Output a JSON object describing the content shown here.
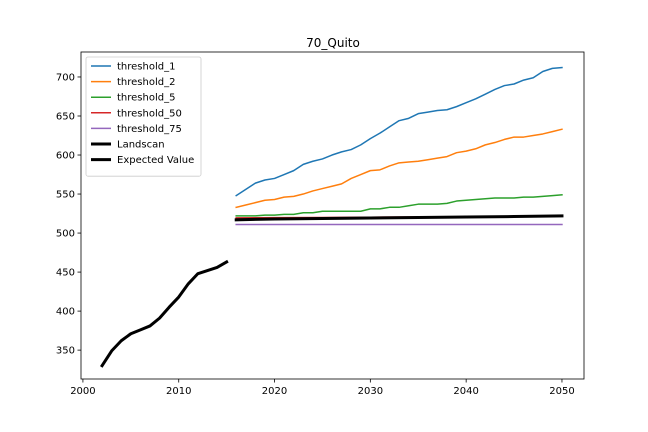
{
  "chart_data": {
    "type": "line",
    "title": "70_Quito",
    "xlabel": "",
    "ylabel": "",
    "xlim": [
      1999.8,
      2052.3
    ],
    "ylim": [
      313,
      732
    ],
    "x_ticks": [
      2000,
      2010,
      2020,
      2030,
      2040,
      2050
    ],
    "y_ticks": [
      350,
      400,
      450,
      500,
      550,
      600,
      650,
      700
    ],
    "legend_position": "top-left",
    "grid": false,
    "series": [
      {
        "name": "threshold_1",
        "color": "#1f77b4",
        "width": 1.5,
        "x": [
          2016,
          2017,
          2018,
          2019,
          2020,
          2021,
          2022,
          2023,
          2024,
          2025,
          2026,
          2027,
          2028,
          2029,
          2030,
          2031,
          2032,
          2033,
          2034,
          2035,
          2036,
          2037,
          2038,
          2039,
          2040,
          2041,
          2042,
          2043,
          2044,
          2045,
          2046,
          2047,
          2048,
          2049,
          2050
        ],
        "y": [
          548,
          556,
          564,
          568,
          570,
          575,
          580,
          588,
          592,
          595,
          600,
          604,
          607,
          613,
          621,
          628,
          636,
          644,
          647,
          653,
          655,
          657,
          658,
          662,
          667,
          672,
          678,
          684,
          689,
          691,
          696,
          699,
          707,
          711,
          712
        ]
      },
      {
        "name": "threshold_2",
        "color": "#ff7f0e",
        "width": 1.5,
        "x": [
          2016,
          2017,
          2018,
          2019,
          2020,
          2021,
          2022,
          2023,
          2024,
          2025,
          2026,
          2027,
          2028,
          2029,
          2030,
          2031,
          2032,
          2033,
          2034,
          2035,
          2036,
          2037,
          2038,
          2039,
          2040,
          2041,
          2042,
          2043,
          2044,
          2045,
          2046,
          2047,
          2048,
          2049,
          2050
        ],
        "y": [
          533,
          536,
          539,
          542,
          543,
          546,
          547,
          550,
          554,
          557,
          560,
          563,
          570,
          575,
          580,
          581,
          586,
          590,
          591,
          592,
          594,
          596,
          598,
          603,
          605,
          608,
          613,
          616,
          620,
          623,
          623,
          625,
          627,
          630,
          633
        ]
      },
      {
        "name": "threshold_5",
        "color": "#2ca02c",
        "width": 1.5,
        "x": [
          2016,
          2017,
          2018,
          2019,
          2020,
          2021,
          2022,
          2023,
          2024,
          2025,
          2026,
          2027,
          2028,
          2029,
          2030,
          2031,
          2032,
          2033,
          2034,
          2035,
          2036,
          2037,
          2038,
          2039,
          2040,
          2041,
          2042,
          2043,
          2044,
          2045,
          2046,
          2047,
          2048,
          2049,
          2050
        ],
        "y": [
          522,
          522,
          522,
          523,
          523,
          524,
          524,
          526,
          526,
          528,
          528,
          528,
          528,
          528,
          531,
          531,
          533,
          533,
          535,
          537,
          537,
          537,
          538,
          541,
          542,
          543,
          544,
          545,
          545,
          545,
          546,
          546,
          547,
          548,
          549
        ]
      },
      {
        "name": "threshold_50",
        "color": "#d62728",
        "width": 1.5,
        "x": [
          2016,
          2020,
          2025,
          2030,
          2035,
          2040,
          2045,
          2050
        ],
        "y": [
          519.5,
          519.8,
          520.0,
          520.3,
          520.6,
          520.9,
          521.2,
          521.5
        ]
      },
      {
        "name": "threshold_75",
        "color": "#9467bd",
        "width": 1.5,
        "x": [
          2016,
          2050
        ],
        "y": [
          511,
          511
        ]
      },
      {
        "name": "Landscan",
        "color": "#000000",
        "width": 3,
        "x": [
          2002,
          2003,
          2004,
          2005,
          2006,
          2007,
          2008,
          2009,
          2010,
          2011,
          2012,
          2013,
          2014,
          2015
        ],
        "y": [
          330,
          349,
          362,
          371,
          376,
          381,
          391,
          405,
          418,
          435,
          448,
          452,
          456,
          463
        ]
      },
      {
        "name": "Expected Value",
        "color": "#000000",
        "width": 3,
        "x": [
          2016,
          2020,
          2025,
          2030,
          2035,
          2040,
          2045,
          2050
        ],
        "y": [
          517,
          518,
          518.7,
          519.3,
          519.9,
          520.5,
          521.2,
          522
        ]
      }
    ]
  }
}
